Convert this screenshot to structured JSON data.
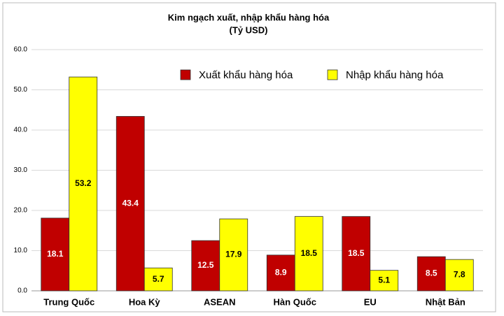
{
  "chart_data": {
    "type": "bar",
    "title": "Kim ngạch xuất, nhập khẩu hàng hóa",
    "subtitle": "(Tỷ USD)",
    "categories": [
      "Trung Quốc",
      "Hoa Kỳ",
      "ASEAN",
      "Hàn Quốc",
      "EU",
      "Nhật Bản"
    ],
    "series": [
      {
        "name": "Xuất khẩu hàng hóa",
        "color": "#c00000",
        "values": [
          18.1,
          43.4,
          12.5,
          8.9,
          18.5,
          8.5
        ]
      },
      {
        "name": "Nhập khẩu hàng hóa",
        "color": "#ffff00",
        "values": [
          53.2,
          5.7,
          17.9,
          18.5,
          5.1,
          7.8
        ]
      }
    ],
    "ylim": [
      0,
      60
    ],
    "yticks": [
      {
        "value": 0,
        "label": "0.0"
      },
      {
        "value": 10,
        "label": "10.0"
      },
      {
        "value": 20,
        "label": "20.0"
      },
      {
        "value": 30,
        "label": "30.0"
      },
      {
        "value": 40,
        "label": "40.0"
      },
      {
        "value": 50,
        "label": "50.0"
      },
      {
        "value": 60,
        "label": "60.0"
      }
    ],
    "grid": true,
    "legend": "top-right"
  }
}
